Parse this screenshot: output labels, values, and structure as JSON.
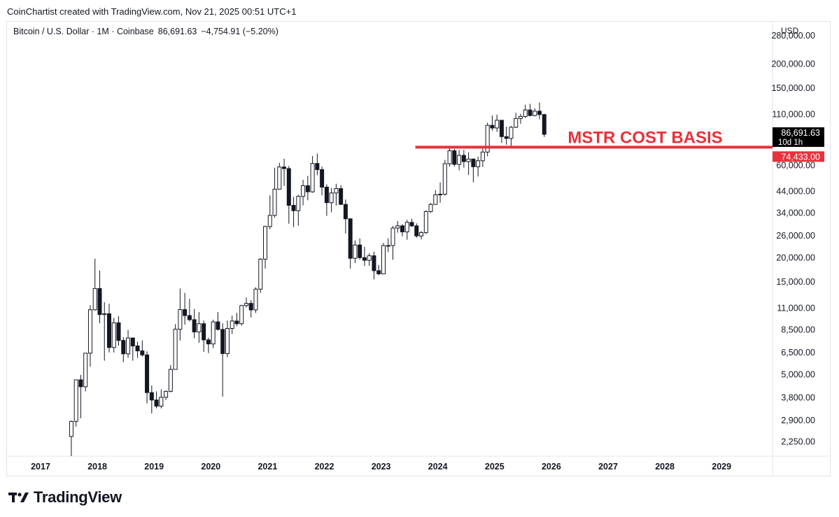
{
  "credit": "CoinChartist created with TradingView.com, Nov 21, 2025 00:51 UTC+1",
  "header": {
    "symbol": "Bitcoin / U.S. Dollar · 1M · Coinbase",
    "price": "86,691.63",
    "change": "−4,754.91 (−5.20%)"
  },
  "logo_text": "TradingView",
  "chart_data": {
    "type": "candlestick",
    "interval": "1M",
    "yscale": "log",
    "currency": "USD",
    "ylim": [
      1900,
      330000
    ],
    "x_ticks": [
      "2017",
      "2018",
      "2019",
      "2020",
      "2021",
      "2022",
      "2023",
      "2024",
      "2025",
      "2026",
      "2027",
      "2028",
      "2029"
    ],
    "y_ticks": [
      {
        "v": 280000,
        "label": "280,000.00"
      },
      {
        "v": 200000,
        "label": "200,000.00"
      },
      {
        "v": 150000,
        "label": "150,000.00"
      },
      {
        "v": 110000,
        "label": "110,000.00"
      },
      {
        "v": 60000,
        "label": "60,000.00"
      },
      {
        "v": 44000,
        "label": "44,000.00"
      },
      {
        "v": 34000,
        "label": "34,000.00"
      },
      {
        "v": 26000,
        "label": "26,000.00"
      },
      {
        "v": 20000,
        "label": "20,000.00"
      },
      {
        "v": 15000,
        "label": "15,000.00"
      },
      {
        "v": 11000,
        "label": "11,000.00"
      },
      {
        "v": 8500,
        "label": "8,500.00"
      },
      {
        "v": 6500,
        "label": "6,500.00"
      },
      {
        "v": 5000,
        "label": "5,000.00"
      },
      {
        "v": 3800,
        "label": "3,800.00"
      },
      {
        "v": 2900,
        "label": "2,900.00"
      },
      {
        "v": 2250,
        "label": "2,250.00"
      }
    ],
    "current_price": {
      "value": 86691.63,
      "label": "86,691.63",
      "countdown": "10d 1h"
    },
    "annotation": {
      "text": "MSTR COST BASIS",
      "value": 74433,
      "label": "74,433.00",
      "start": "2023-11",
      "color": "#e8323c"
    },
    "candles": [
      {
        "d": "2017-07",
        "o": 2400,
        "h": 2900,
        "l": 1850,
        "c": 2870
      },
      {
        "d": "2017-08",
        "o": 2870,
        "h": 4700,
        "l": 2700,
        "c": 4700
      },
      {
        "d": "2017-09",
        "o": 4700,
        "h": 4980,
        "l": 2980,
        "c": 4330
      },
      {
        "d": "2017-10",
        "o": 4330,
        "h": 6450,
        "l": 4100,
        "c": 6450
      },
      {
        "d": "2017-11",
        "o": 6450,
        "h": 11400,
        "l": 5500,
        "c": 10800
      },
      {
        "d": "2017-12",
        "o": 10800,
        "h": 19800,
        "l": 10700,
        "c": 13900
      },
      {
        "d": "2018-01",
        "o": 13900,
        "h": 17200,
        "l": 9200,
        "c": 10200
      },
      {
        "d": "2018-02",
        "o": 10200,
        "h": 11800,
        "l": 5900,
        "c": 10300
      },
      {
        "d": "2018-03",
        "o": 10300,
        "h": 11600,
        "l": 6500,
        "c": 6900
      },
      {
        "d": "2018-04",
        "o": 6900,
        "h": 9800,
        "l": 6500,
        "c": 9250
      },
      {
        "d": "2018-05",
        "o": 9250,
        "h": 10000,
        "l": 7050,
        "c": 7500
      },
      {
        "d": "2018-06",
        "o": 7500,
        "h": 7800,
        "l": 5800,
        "c": 6400
      },
      {
        "d": "2018-07",
        "o": 6400,
        "h": 8500,
        "l": 6100,
        "c": 7730
      },
      {
        "d": "2018-08",
        "o": 7730,
        "h": 7760,
        "l": 5900,
        "c": 7030
      },
      {
        "d": "2018-09",
        "o": 7030,
        "h": 7400,
        "l": 6100,
        "c": 6630
      },
      {
        "d": "2018-10",
        "o": 6630,
        "h": 7500,
        "l": 6200,
        "c": 6320
      },
      {
        "d": "2018-11",
        "o": 6320,
        "h": 6600,
        "l": 3550,
        "c": 4040
      },
      {
        "d": "2018-12",
        "o": 4040,
        "h": 4400,
        "l": 3150,
        "c": 3700
      },
      {
        "d": "2019-01",
        "o": 3700,
        "h": 4100,
        "l": 3350,
        "c": 3440
      },
      {
        "d": "2019-02",
        "o": 3440,
        "h": 4200,
        "l": 3350,
        "c": 3820
      },
      {
        "d": "2019-03",
        "o": 3820,
        "h": 4150,
        "l": 3700,
        "c": 4100
      },
      {
        "d": "2019-04",
        "o": 4100,
        "h": 5600,
        "l": 4050,
        "c": 5320
      },
      {
        "d": "2019-05",
        "o": 5320,
        "h": 9100,
        "l": 5320,
        "c": 8570
      },
      {
        "d": "2019-06",
        "o": 8570,
        "h": 13900,
        "l": 7500,
        "c": 10820
      },
      {
        "d": "2019-07",
        "o": 10820,
        "h": 13200,
        "l": 9050,
        "c": 10080
      },
      {
        "d": "2019-08",
        "o": 10080,
        "h": 12300,
        "l": 9400,
        "c": 9600
      },
      {
        "d": "2019-09",
        "o": 9600,
        "h": 10900,
        "l": 7700,
        "c": 8300
      },
      {
        "d": "2019-10",
        "o": 8300,
        "h": 10500,
        "l": 7300,
        "c": 9150
      },
      {
        "d": "2019-11",
        "o": 9150,
        "h": 9500,
        "l": 6550,
        "c": 7550
      },
      {
        "d": "2019-12",
        "o": 7550,
        "h": 7750,
        "l": 6450,
        "c": 7200
      },
      {
        "d": "2020-01",
        "o": 7200,
        "h": 9600,
        "l": 6850,
        "c": 9350
      },
      {
        "d": "2020-02",
        "o": 9350,
        "h": 10500,
        "l": 8450,
        "c": 8550
      },
      {
        "d": "2020-03",
        "o": 8550,
        "h": 9200,
        "l": 3850,
        "c": 6420
      },
      {
        "d": "2020-04",
        "o": 6420,
        "h": 9500,
        "l": 6150,
        "c": 8650
      },
      {
        "d": "2020-05",
        "o": 8650,
        "h": 10080,
        "l": 8100,
        "c": 9450
      },
      {
        "d": "2020-06",
        "o": 9450,
        "h": 10400,
        "l": 8900,
        "c": 9150
      },
      {
        "d": "2020-07",
        "o": 9150,
        "h": 11450,
        "l": 8950,
        "c": 11350
      },
      {
        "d": "2020-08",
        "o": 11350,
        "h": 12480,
        "l": 11100,
        "c": 11650
      },
      {
        "d": "2020-09",
        "o": 11650,
        "h": 12100,
        "l": 9850,
        "c": 10780
      },
      {
        "d": "2020-10",
        "o": 10780,
        "h": 14100,
        "l": 10400,
        "c": 13800
      },
      {
        "d": "2020-11",
        "o": 13800,
        "h": 19900,
        "l": 13200,
        "c": 19700
      },
      {
        "d": "2020-12",
        "o": 19700,
        "h": 29300,
        "l": 17600,
        "c": 29000
      },
      {
        "d": "2021-01",
        "o": 29000,
        "h": 42000,
        "l": 28100,
        "c": 33100
      },
      {
        "d": "2021-02",
        "o": 33100,
        "h": 58300,
        "l": 32300,
        "c": 45200
      },
      {
        "d": "2021-03",
        "o": 45200,
        "h": 61800,
        "l": 45000,
        "c": 58800
      },
      {
        "d": "2021-04",
        "o": 58800,
        "h": 64900,
        "l": 47000,
        "c": 57700
      },
      {
        "d": "2021-05",
        "o": 57700,
        "h": 59500,
        "l": 30000,
        "c": 37300
      },
      {
        "d": "2021-06",
        "o": 37300,
        "h": 41300,
        "l": 28800,
        "c": 35000
      },
      {
        "d": "2021-07",
        "o": 35000,
        "h": 42300,
        "l": 29300,
        "c": 41500
      },
      {
        "d": "2021-08",
        "o": 41500,
        "h": 50500,
        "l": 37300,
        "c": 47100
      },
      {
        "d": "2021-09",
        "o": 47100,
        "h": 52900,
        "l": 39600,
        "c": 43800
      },
      {
        "d": "2021-10",
        "o": 43800,
        "h": 67000,
        "l": 43300,
        "c": 61300
      },
      {
        "d": "2021-11",
        "o": 61300,
        "h": 69000,
        "l": 53300,
        "c": 57000
      },
      {
        "d": "2021-12",
        "o": 57000,
        "h": 59100,
        "l": 42000,
        "c": 46300
      },
      {
        "d": "2022-01",
        "o": 46300,
        "h": 47900,
        "l": 32900,
        "c": 38500
      },
      {
        "d": "2022-02",
        "o": 38500,
        "h": 45800,
        "l": 34300,
        "c": 43200
      },
      {
        "d": "2022-03",
        "o": 43200,
        "h": 48200,
        "l": 37200,
        "c": 45500
      },
      {
        "d": "2022-04",
        "o": 45500,
        "h": 47400,
        "l": 37700,
        "c": 37700
      },
      {
        "d": "2022-05",
        "o": 37700,
        "h": 40000,
        "l": 26700,
        "c": 31800
      },
      {
        "d": "2022-06",
        "o": 31800,
        "h": 31900,
        "l": 17600,
        "c": 19900
      },
      {
        "d": "2022-07",
        "o": 19900,
        "h": 24600,
        "l": 18800,
        "c": 23300
      },
      {
        "d": "2022-08",
        "o": 23300,
        "h": 25200,
        "l": 19600,
        "c": 20050
      },
      {
        "d": "2022-09",
        "o": 20050,
        "h": 22800,
        "l": 18150,
        "c": 19420
      },
      {
        "d": "2022-10",
        "o": 19420,
        "h": 21100,
        "l": 18200,
        "c": 20500
      },
      {
        "d": "2022-11",
        "o": 20500,
        "h": 21500,
        "l": 15500,
        "c": 17170
      },
      {
        "d": "2022-12",
        "o": 17170,
        "h": 18400,
        "l": 16300,
        "c": 16540
      },
      {
        "d": "2023-01",
        "o": 16540,
        "h": 23900,
        "l": 16500,
        "c": 23130
      },
      {
        "d": "2023-02",
        "o": 23130,
        "h": 25250,
        "l": 21400,
        "c": 23150
      },
      {
        "d": "2023-03",
        "o": 23150,
        "h": 29200,
        "l": 19550,
        "c": 28480
      },
      {
        "d": "2023-04",
        "o": 28480,
        "h": 31000,
        "l": 26950,
        "c": 29250
      },
      {
        "d": "2023-05",
        "o": 29250,
        "h": 29820,
        "l": 25800,
        "c": 27220
      },
      {
        "d": "2023-06",
        "o": 27220,
        "h": 31400,
        "l": 24800,
        "c": 30470
      },
      {
        "d": "2023-07",
        "o": 30470,
        "h": 31800,
        "l": 28850,
        "c": 29230
      },
      {
        "d": "2023-08",
        "o": 29230,
        "h": 30100,
        "l": 25400,
        "c": 25940
      },
      {
        "d": "2023-09",
        "o": 25940,
        "h": 27500,
        "l": 24900,
        "c": 26970
      },
      {
        "d": "2023-10",
        "o": 26970,
        "h": 35200,
        "l": 26550,
        "c": 34650
      },
      {
        "d": "2023-11",
        "o": 34650,
        "h": 38400,
        "l": 34100,
        "c": 37720
      },
      {
        "d": "2023-12",
        "o": 37720,
        "h": 44700,
        "l": 37600,
        "c": 42280
      },
      {
        "d": "2024-01",
        "o": 42280,
        "h": 48970,
        "l": 38500,
        "c": 42580
      },
      {
        "d": "2024-02",
        "o": 42580,
        "h": 64000,
        "l": 41880,
        "c": 61130
      },
      {
        "d": "2024-03",
        "o": 61130,
        "h": 73800,
        "l": 59000,
        "c": 71290
      },
      {
        "d": "2024-04",
        "o": 71290,
        "h": 72800,
        "l": 59200,
        "c": 60660
      },
      {
        "d": "2024-05",
        "o": 60660,
        "h": 72000,
        "l": 56500,
        "c": 67500
      },
      {
        "d": "2024-06",
        "o": 67500,
        "h": 72000,
        "l": 58400,
        "c": 62680
      },
      {
        "d": "2024-07",
        "o": 62680,
        "h": 70000,
        "l": 53500,
        "c": 64620
      },
      {
        "d": "2024-08",
        "o": 64620,
        "h": 65000,
        "l": 49000,
        "c": 58970
      },
      {
        "d": "2024-09",
        "o": 58970,
        "h": 66500,
        "l": 52550,
        "c": 63330
      },
      {
        "d": "2024-10",
        "o": 63330,
        "h": 73600,
        "l": 58900,
        "c": 70220
      },
      {
        "d": "2024-11",
        "o": 70220,
        "h": 99600,
        "l": 66800,
        "c": 96410
      },
      {
        "d": "2024-12",
        "o": 96410,
        "h": 108300,
        "l": 90500,
        "c": 93430
      },
      {
        "d": "2025-01",
        "o": 93430,
        "h": 109350,
        "l": 89200,
        "c": 102400
      },
      {
        "d": "2025-02",
        "o": 102400,
        "h": 102500,
        "l": 78200,
        "c": 84350
      },
      {
        "d": "2025-03",
        "o": 84350,
        "h": 95000,
        "l": 76600,
        "c": 82550
      },
      {
        "d": "2025-04",
        "o": 82550,
        "h": 95700,
        "l": 74500,
        "c": 94200
      },
      {
        "d": "2025-05",
        "o": 94200,
        "h": 111900,
        "l": 93400,
        "c": 104600
      },
      {
        "d": "2025-06",
        "o": 104600,
        "h": 110500,
        "l": 98200,
        "c": 107150
      },
      {
        "d": "2025-07",
        "o": 107150,
        "h": 123200,
        "l": 105100,
        "c": 115750
      },
      {
        "d": "2025-08",
        "o": 115750,
        "h": 124450,
        "l": 107300,
        "c": 108250
      },
      {
        "d": "2025-09",
        "o": 108250,
        "h": 117900,
        "l": 107300,
        "c": 114050
      },
      {
        "d": "2025-10",
        "o": 114050,
        "h": 126200,
        "l": 103500,
        "c": 109600
      },
      {
        "d": "2025-11",
        "o": 109600,
        "h": 110600,
        "l": 84000,
        "c": 86691.63
      }
    ]
  }
}
